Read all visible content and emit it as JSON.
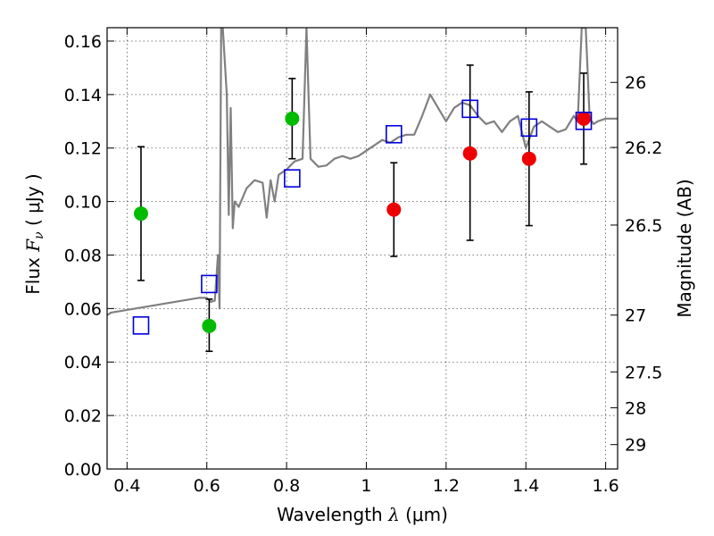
{
  "chart_data": {
    "type": "scatter",
    "xlabel": "Wavelength  λ (μm)",
    "xlabel_parts": {
      "prefix": "Wavelength  ",
      "symbol": "λ",
      "suffix": " (μm)"
    },
    "ylabel": "Flux  Fν  ( μJy )",
    "ylabel_parts": {
      "prefix": "Flux  ",
      "symbol": "F",
      "sub": "ν",
      "suffix": "  ( μJy )"
    },
    "y2label": "Magnitude (AB)",
    "xlim": [
      0.35,
      1.63
    ],
    "ylim": [
      0.0,
      0.165
    ],
    "grid": true,
    "x_ticks": [
      0.4,
      0.6,
      0.8,
      1.0,
      1.2,
      1.4,
      1.6
    ],
    "x_tick_labels": [
      "0.4",
      "0.6",
      "0.8",
      "1",
      "1.2",
      "1.4",
      "1.6"
    ],
    "y_ticks": [
      0.0,
      0.02,
      0.04,
      0.06,
      0.08,
      0.1,
      0.12,
      0.14,
      0.16
    ],
    "y_tick_labels": [
      "0.00",
      "0.02",
      "0.04",
      "0.06",
      "0.08",
      "0.10",
      "0.12",
      "0.14",
      "0.16"
    ],
    "y2_ticks": [
      {
        "mag": 26,
        "label": "26"
      },
      {
        "mag": 26.2,
        "label": "26.2"
      },
      {
        "mag": 26.5,
        "label": "26.5"
      },
      {
        "mag": 27,
        "label": "27"
      },
      {
        "mag": 27.5,
        "label": "27.5"
      },
      {
        "mag": 28,
        "label": "28"
      },
      {
        "mag": 29,
        "label": "29"
      }
    ],
    "colors": {
      "green": "#00bb00",
      "red": "#ee0000",
      "blue": "#0000dd",
      "model": "#808080",
      "errorbar": "#000000",
      "grid": "#555555"
    },
    "series": [
      {
        "marker": "circle",
        "color": "green",
        "points": [
          {
            "x": 0.435,
            "y": 0.0955,
            "err_low": 0.0705,
            "err_high": 0.1205
          },
          {
            "x": 0.606,
            "y": 0.0535,
            "err_low": 0.044,
            "err_high": 0.0635
          },
          {
            "x": 0.814,
            "y": 0.131,
            "err_low": 0.116,
            "err_high": 0.146
          }
        ]
      },
      {
        "marker": "circle",
        "color": "red",
        "points": [
          {
            "x": 1.069,
            "y": 0.097,
            "err_low": 0.0795,
            "err_high": 0.1145
          },
          {
            "x": 1.26,
            "y": 0.118,
            "err_low": 0.0855,
            "err_high": 0.151
          },
          {
            "x": 1.408,
            "y": 0.116,
            "err_low": 0.091,
            "err_high": 0.141
          },
          {
            "x": 1.545,
            "y": 0.131,
            "err_low": 0.114,
            "err_high": 0.148
          }
        ]
      },
      {
        "marker": "open-square",
        "color": "blue",
        "points": [
          {
            "x": 0.435,
            "y": 0.0535
          },
          {
            "x": 0.606,
            "y": 0.069
          },
          {
            "x": 0.814,
            "y": 0.1085
          },
          {
            "x": 1.069,
            "y": 0.125
          },
          {
            "x": 1.26,
            "y": 0.1345
          },
          {
            "x": 1.408,
            "y": 0.1275
          },
          {
            "x": 1.545,
            "y": 0.13
          }
        ]
      }
    ],
    "model_spectrum": {
      "color": "model",
      "x": [
        0.35,
        0.36,
        0.38,
        0.4,
        0.42,
        0.44,
        0.46,
        0.48,
        0.5,
        0.52,
        0.54,
        0.56,
        0.58,
        0.6,
        0.61,
        0.62,
        0.628,
        0.632,
        0.636,
        0.64,
        0.65,
        0.655,
        0.66,
        0.665,
        0.67,
        0.68,
        0.7,
        0.72,
        0.74,
        0.75,
        0.76,
        0.77,
        0.78,
        0.8,
        0.82,
        0.84,
        0.85,
        0.86,
        0.88,
        0.9,
        0.92,
        0.94,
        0.96,
        0.98,
        1.0,
        1.02,
        1.04,
        1.06,
        1.08,
        1.1,
        1.12,
        1.14,
        1.16,
        1.18,
        1.2,
        1.22,
        1.24,
        1.26,
        1.28,
        1.3,
        1.32,
        1.34,
        1.36,
        1.38,
        1.4,
        1.42,
        1.44,
        1.46,
        1.48,
        1.5,
        1.52,
        1.53,
        1.54,
        1.55,
        1.56,
        1.57,
        1.58,
        1.6,
        1.63
      ],
      "y": [
        0.0575,
        0.0585,
        0.059,
        0.0595,
        0.06,
        0.0605,
        0.061,
        0.0615,
        0.062,
        0.0625,
        0.063,
        0.0635,
        0.064,
        0.064,
        0.0625,
        0.063,
        0.08,
        0.06,
        0.165,
        0.165,
        0.14,
        0.095,
        0.135,
        0.09,
        0.1,
        0.098,
        0.105,
        0.108,
        0.107,
        0.094,
        0.108,
        0.1,
        0.11,
        0.112,
        0.115,
        0.116,
        0.165,
        0.116,
        0.113,
        0.1135,
        0.116,
        0.117,
        0.116,
        0.117,
        0.119,
        0.121,
        0.123,
        0.122,
        0.124,
        0.125,
        0.125,
        0.132,
        0.14,
        0.135,
        0.13,
        0.135,
        0.137,
        0.136,
        0.132,
        0.129,
        0.13,
        0.126,
        0.13,
        0.132,
        0.12,
        0.128,
        0.13,
        0.128,
        0.126,
        0.127,
        0.132,
        0.13,
        0.165,
        0.165,
        0.131,
        0.129,
        0.13,
        0.131,
        0.131
      ]
    }
  }
}
